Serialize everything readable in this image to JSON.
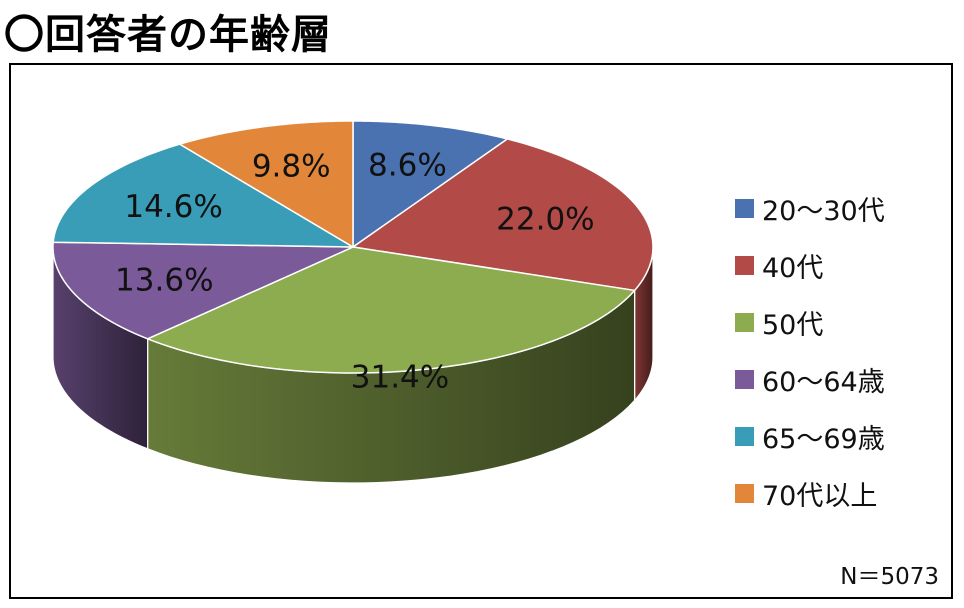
{
  "title": "〇回答者の年齢層",
  "sample_size": "N＝5073",
  "chart_data": {
    "type": "pie",
    "style": "3d-exploded-none",
    "title": "〇回答者の年齢層",
    "categories": [
      "20～30代",
      "40代",
      "50代",
      "60～64歳",
      "65～69歳",
      "70代以上"
    ],
    "values": [
      8.6,
      22.0,
      31.4,
      13.6,
      14.6,
      9.8
    ],
    "data_labels": [
      "8.6%",
      "22.0%",
      "31.4%",
      "13.6%",
      "14.6%",
      "9.8%"
    ],
    "colors": [
      "#4a72b0",
      "#b24a47",
      "#8dab4f",
      "#7a5a98",
      "#3a9db8",
      "#e2873a"
    ],
    "legend_position": "right",
    "start_angle": "12 o'clock",
    "direction": "clockwise"
  }
}
